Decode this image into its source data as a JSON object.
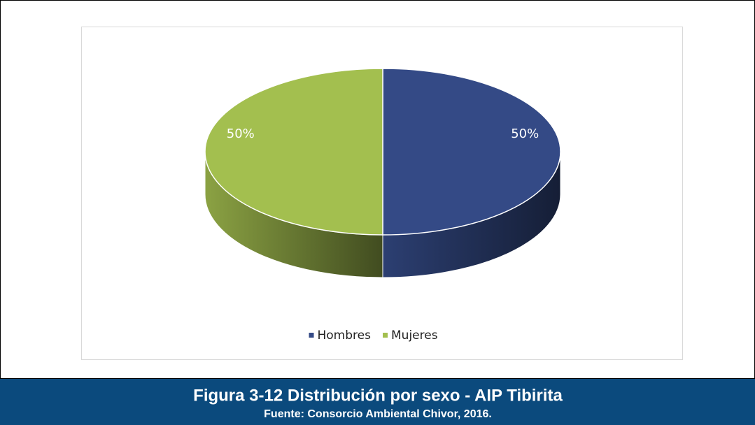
{
  "chart_data": {
    "type": "pie",
    "title": "Figura 3-12 Distribución por sexo - AIP Tibirita",
    "subtitle": "Fuente: Consorcio Ambiental Chivor, 2016.",
    "categories": [
      "Hombres",
      "Mujeres"
    ],
    "values": [
      50,
      50
    ],
    "value_labels": [
      "50%",
      "50%"
    ],
    "colors": [
      "#344a86",
      "#a3bf4f"
    ],
    "legend": "bottom"
  }
}
